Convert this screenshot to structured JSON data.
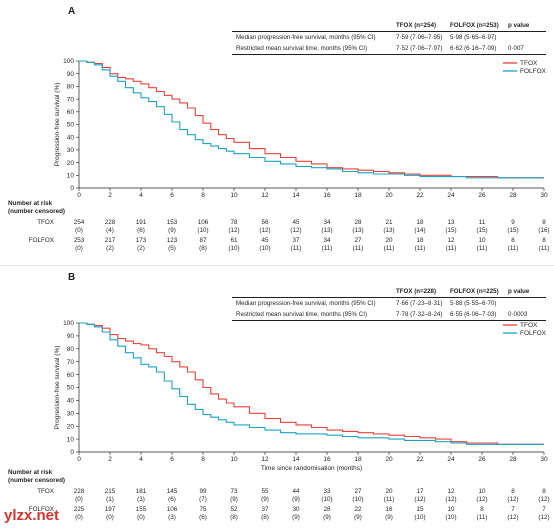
{
  "watermark": "ylzx.net",
  "chart_data": [
    {
      "type": "line",
      "panel": "A",
      "ylabel": "Progression-free survival (%)",
      "xlabel": "",
      "xlim": [
        0,
        30
      ],
      "ylim": [
        0,
        100
      ],
      "xticks": [
        0,
        2,
        4,
        6,
        8,
        10,
        12,
        14,
        16,
        18,
        20,
        22,
        24,
        26,
        28,
        30
      ],
      "yticks": [
        0,
        10,
        20,
        30,
        40,
        50,
        60,
        70,
        80,
        90,
        100
      ],
      "legend_position": "top-right",
      "series": [
        {
          "name": "TFOX",
          "color": "#e8423b",
          "x": [
            0,
            0.5,
            1,
            1.5,
            2,
            2.5,
            3,
            3.5,
            4,
            4.5,
            5,
            5.5,
            6,
            6.5,
            7,
            7.5,
            8,
            8.5,
            9,
            9.5,
            10,
            11,
            12,
            13,
            14,
            15,
            16,
            17,
            18,
            19,
            20,
            21,
            22,
            23,
            24,
            25,
            26,
            27,
            28,
            29,
            30
          ],
          "y": [
            100,
            99,
            98,
            95,
            90,
            87,
            86,
            84,
            82,
            79,
            76,
            73,
            70,
            67,
            63,
            57,
            51,
            46,
            42,
            39,
            36,
            31,
            27,
            24,
            21,
            19,
            16,
            15,
            14,
            13,
            12,
            11,
            10,
            10,
            9,
            9,
            9,
            8,
            8,
            8,
            8
          ]
        },
        {
          "name": "FOLFOX",
          "color": "#1ba3c6",
          "x": [
            0,
            0.5,
            1,
            1.5,
            2,
            2.5,
            3,
            3.5,
            4,
            4.5,
            5,
            5.5,
            6,
            6.5,
            7,
            7.5,
            8,
            8.5,
            9,
            9.5,
            10,
            11,
            12,
            13,
            14,
            15,
            16,
            17,
            18,
            19,
            20,
            21,
            22,
            23,
            24,
            25,
            26,
            27,
            28,
            29,
            30
          ],
          "y": [
            100,
            99,
            97,
            93,
            88,
            84,
            79,
            75,
            71,
            68,
            64,
            58,
            52,
            46,
            42,
            38,
            35,
            33,
            31,
            29,
            27,
            24,
            21,
            19,
            17,
            16,
            15,
            13,
            12,
            11,
            11,
            10,
            9,
            9,
            9,
            8,
            8,
            8,
            8,
            8,
            8
          ]
        }
      ],
      "stats_table": {
        "headers": [
          "",
          "TFOX (n=254)",
          "FOLFOX (n=253)",
          "p value"
        ],
        "rows": [
          [
            "Median progression-free survival, months (95% CI)",
            "7·59 (7·06–7·95)",
            "5·98 (5·65–6·97)",
            ""
          ],
          [
            "Restricted mean survival time, months (95% CI)",
            "7·52 (7·06–7·97)",
            "6·62 (6·16–7·09)",
            "0·007"
          ]
        ]
      },
      "risk_table": {
        "title_line1": "Number at risk",
        "title_line2": "(number censored)",
        "rows": [
          {
            "label": "TFOX",
            "values": [
              "254",
              "228",
              "191",
              "153",
              "106",
              "78",
              "56",
              "45",
              "34",
              "28",
              "21",
              "18",
              "13",
              "11",
              "9",
              "8"
            ]
          },
          {
            "label": "",
            "values": [
              "(0)",
              "(4)",
              "(6)",
              "(9)",
              "(10)",
              "(12)",
              "(12)",
              "(12)",
              "(13)",
              "(13)",
              "(13)",
              "(14)",
              "(15)",
              "(15)",
              "(15)",
              "(16)"
            ]
          },
          {
            "label": "FOLFOX",
            "values": [
              "253",
              "217",
              "173",
              "123",
              "87",
              "61",
              "45",
              "37",
              "34",
              "27",
              "20",
              "18",
              "12",
              "10",
              "8",
              "8"
            ]
          },
          {
            "label": "",
            "values": [
              "(0)",
              "(2)",
              "(2)",
              "(5)",
              "(8)",
              "(10)",
              "(10)",
              "(11)",
              "(11)",
              "(11)",
              "(11)",
              "(11)",
              "(11)",
              "(11)",
              "(11)",
              "(11)"
            ]
          }
        ]
      }
    },
    {
      "type": "line",
      "panel": "B",
      "ylabel": "Progression-free survival (%)",
      "xlabel": "Time since randomisation (months)",
      "xlim": [
        0,
        30
      ],
      "ylim": [
        0,
        100
      ],
      "xticks": [
        0,
        2,
        4,
        6,
        8,
        10,
        12,
        14,
        16,
        18,
        20,
        22,
        24,
        26,
        28,
        30
      ],
      "yticks": [
        0,
        10,
        20,
        30,
        40,
        50,
        60,
        70,
        80,
        90,
        100
      ],
      "legend_position": "top-right",
      "series": [
        {
          "name": "TFOX",
          "color": "#e8423b",
          "x": [
            0,
            0.5,
            1,
            1.5,
            2,
            2.5,
            3,
            3.5,
            4,
            4.5,
            5,
            5.5,
            6,
            6.5,
            7,
            7.5,
            8,
            8.5,
            9,
            9.5,
            10,
            11,
            12,
            13,
            14,
            15,
            16,
            17,
            18,
            19,
            20,
            21,
            22,
            23,
            24,
            25,
            26,
            27,
            28,
            29,
            30
          ],
          "y": [
            100,
            99,
            98,
            96,
            91,
            88,
            86,
            84,
            83,
            80,
            77,
            74,
            70,
            66,
            62,
            56,
            50,
            45,
            41,
            38,
            35,
            30,
            26,
            23,
            21,
            19,
            17,
            16,
            15,
            14,
            13,
            12,
            11,
            10,
            8,
            7,
            7,
            6,
            6,
            6,
            6
          ]
        },
        {
          "name": "FOLFOX",
          "color": "#1ba3c6",
          "x": [
            0,
            0.5,
            1,
            1.5,
            2,
            2.5,
            3,
            3.5,
            4,
            4.5,
            5,
            5.5,
            6,
            6.5,
            7,
            7.5,
            8,
            8.5,
            9,
            9.5,
            10,
            11,
            12,
            13,
            14,
            15,
            16,
            17,
            18,
            19,
            20,
            21,
            22,
            23,
            24,
            25,
            26,
            27,
            28,
            29,
            30
          ],
          "y": [
            100,
            99,
            97,
            93,
            87,
            82,
            77,
            73,
            68,
            66,
            62,
            55,
            49,
            43,
            37,
            33,
            29,
            27,
            25,
            23,
            21,
            19,
            17,
            15,
            14,
            14,
            13,
            12,
            11,
            11,
            10,
            9,
            9,
            8,
            7,
            6,
            6,
            6,
            6,
            6,
            6
          ]
        }
      ],
      "stats_table": {
        "headers": [
          "",
          "TFOX (n=228)",
          "FOLFOX (n=225)",
          "p value"
        ],
        "rows": [
          [
            "Median progression-free survival, months (95% CI)",
            "7·66 (7·23–8·31)",
            "5·88 (5·55–6·70)",
            ""
          ],
          [
            "Restricted mean survival time, months (95% CI)",
            "7·78 (7·32–8·24)",
            "6·55 (6·06–7·03)",
            "0·0003"
          ]
        ]
      },
      "risk_table": {
        "title_line1": "Number at risk",
        "title_line2": "(number censored)",
        "rows": [
          {
            "label": "TFOX",
            "values": [
              "228",
              "215",
              "181",
              "145",
              "99",
              "73",
              "55",
              "44",
              "33",
              "27",
              "20",
              "17",
              "12",
              "10",
              "8",
              "8"
            ]
          },
          {
            "label": "",
            "values": [
              "(0)",
              "(1)",
              "(3)",
              "(6)",
              "(7)",
              "(9)",
              "(9)",
              "(9)",
              "(10)",
              "(10)",
              "(11)",
              "(12)",
              "(12)",
              "(12)",
              "(12)",
              "(12)"
            ]
          },
          {
            "label": "FOLFOX",
            "values": [
              "225",
              "197",
              "155",
              "106",
              "75",
              "52",
              "37",
              "30",
              "28",
              "22",
              "16",
              "15",
              "10",
              "8",
              "7",
              "7"
            ]
          },
          {
            "label": "",
            "values": [
              "(0)",
              "(0)",
              "(0)",
              "(3)",
              "(6)",
              "(8)",
              "(8)",
              "(9)",
              "(9)",
              "(9)",
              "(9)",
              "(10)",
              "(10)",
              "(11)",
              "(12)",
              "(12)"
            ]
          }
        ]
      }
    }
  ]
}
